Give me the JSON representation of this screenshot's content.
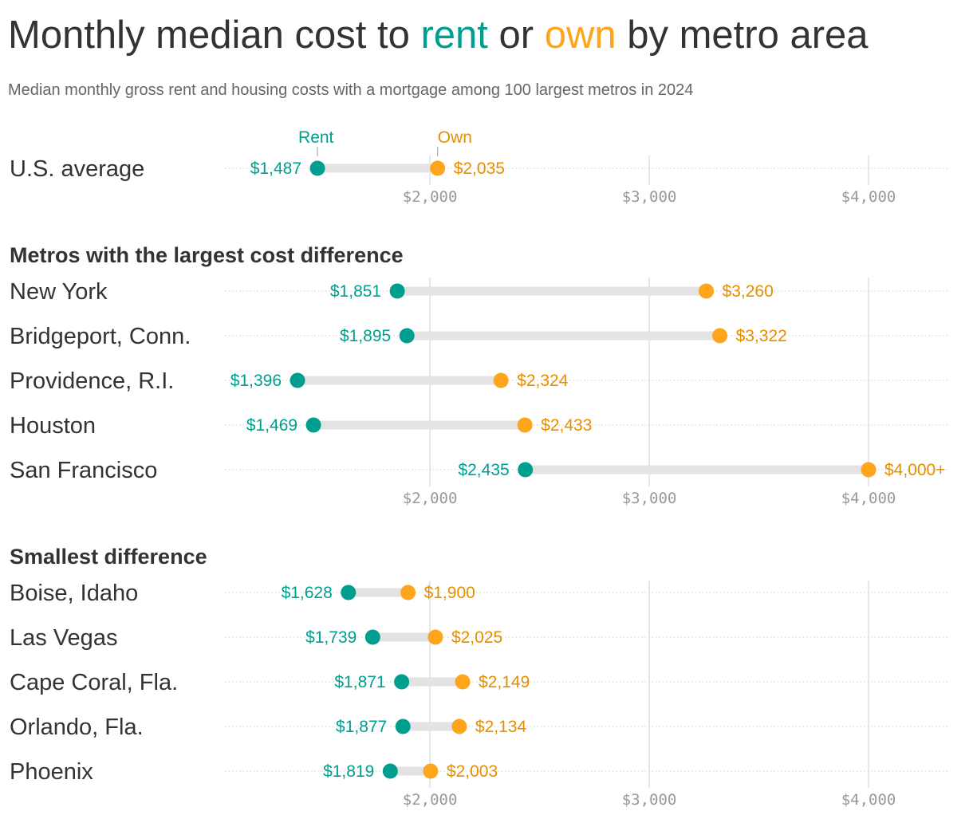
{
  "title": {
    "pre": "Monthly median cost to ",
    "rent": "rent",
    "mid": " or ",
    "own": "own",
    "post": " by metro area"
  },
  "subtitle": "Median monthly gross rent and housing costs with a mortgage among 100 largest metros in 2024",
  "colors": {
    "rent": "#009E8F",
    "own_dot": "#FFA51C",
    "own_text": "#E58E00",
    "bar": "#E3E3E3",
    "grid": "#E0E0E0"
  },
  "chart_data": {
    "type": "dumbbell",
    "legend": {
      "rent": "Rent",
      "own": "Own"
    },
    "xlim": [
      1065,
      4360
    ],
    "x_ticks": [
      2000,
      3000,
      4000
    ],
    "x_tick_labels": [
      "$2,000",
      "$3,000",
      "$4,000"
    ],
    "sections": [
      {
        "heading": "",
        "rows": [
          {
            "label": "U.S. average",
            "rent": 1487,
            "own": 2035,
            "rent_label": "$1,487",
            "own_label": "$2,035"
          }
        ]
      },
      {
        "heading": "Metros with the largest cost difference",
        "rows": [
          {
            "label": "New York",
            "rent": 1851,
            "own": 3260,
            "rent_label": "$1,851",
            "own_label": "$3,260"
          },
          {
            "label": "Bridgeport, Conn.",
            "rent": 1895,
            "own": 3322,
            "rent_label": "$1,895",
            "own_label": "$3,322"
          },
          {
            "label": "Providence, R.I.",
            "rent": 1396,
            "own": 2324,
            "rent_label": "$1,396",
            "own_label": "$2,324"
          },
          {
            "label": "Houston",
            "rent": 1469,
            "own": 2433,
            "rent_label": "$1,469",
            "own_label": "$2,433"
          },
          {
            "label": "San Francisco",
            "rent": 2435,
            "own": 4000,
            "rent_label": "$2,435",
            "own_label": "$4,000+"
          }
        ]
      },
      {
        "heading": "Smallest difference",
        "rows": [
          {
            "label": "Boise, Idaho",
            "rent": 1628,
            "own": 1900,
            "rent_label": "$1,628",
            "own_label": "$1,900"
          },
          {
            "label": "Las Vegas",
            "rent": 1739,
            "own": 2025,
            "rent_label": "$1,739",
            "own_label": "$2,025"
          },
          {
            "label": "Cape Coral, Fla.",
            "rent": 1871,
            "own": 2149,
            "rent_label": "$1,871",
            "own_label": "$2,149"
          },
          {
            "label": "Orlando, Fla.",
            "rent": 1877,
            "own": 2134,
            "rent_label": "$1,877",
            "own_label": "$2,134"
          },
          {
            "label": "Phoenix",
            "rent": 1819,
            "own": 2003,
            "rent_label": "$1,819",
            "own_label": "$2,003"
          }
        ]
      }
    ]
  }
}
